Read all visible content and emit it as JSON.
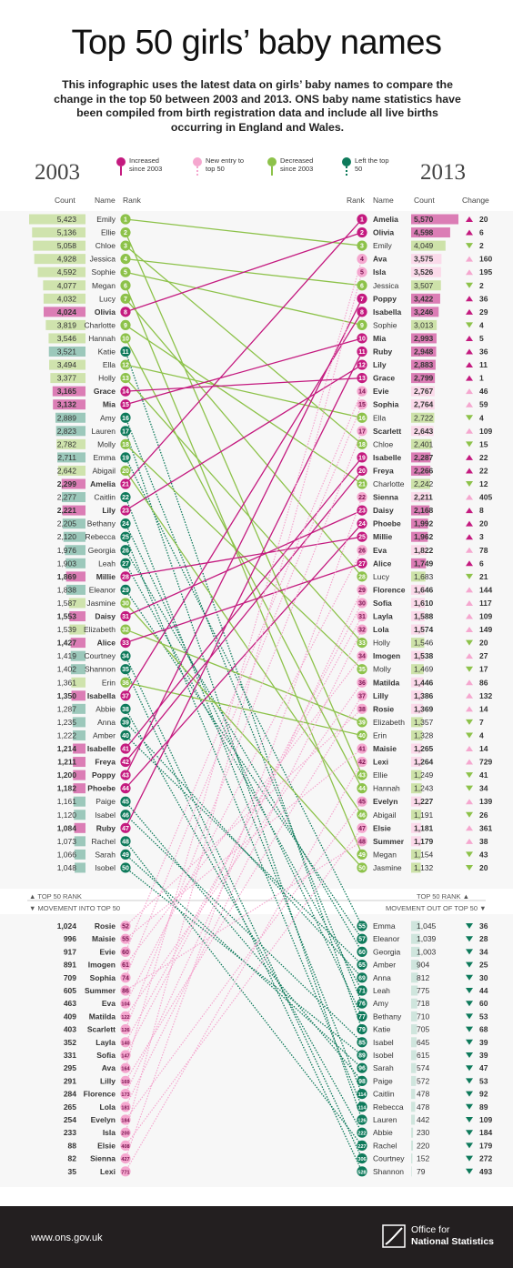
{
  "title": "Top 50 girls’ baby names",
  "intro": "This infographic uses the latest data on girls’ baby names to compare the change in the top 50 between 2003 and 2013. ONS baby name statistics have been compiled from birth registration data and include all live births occurring in England and Wales.",
  "year_left": "2003",
  "year_right": "2013",
  "legend": [
    {
      "label": "Increased since 2003",
      "color": "#c41a7f",
      "icon": "pin-dot-solid"
    },
    {
      "label": "New entry to top 50",
      "color": "#f5a7cf",
      "icon": "pin-dot-dotted"
    },
    {
      "label": "Decreased since 2003",
      "color": "#8dc24a",
      "icon": "pin-dot-solid"
    },
    {
      "label": "Left the top 50",
      "color": "#0e7a5b",
      "icon": "pin-dot-dotted"
    }
  ],
  "headers": {
    "count": "Count",
    "name": "Name",
    "rank": "Rank",
    "change": "Change"
  },
  "section_labels": {
    "top_left": "TOP 50 RANK",
    "top_right": "TOP 50 RANK",
    "movement_in": "MOVEMENT INTO TOP 50",
    "movement_out": "MOVEMENT OUT OF TOP 50"
  },
  "colors": {
    "increase": "#c41a7f",
    "new": "#f5a7cf",
    "decrease": "#8dc24a",
    "left": "#0e7a5b",
    "neutral": "#8cc0b0",
    "footer": "#231f20"
  },
  "chart_data": {
    "type": "slope",
    "left_2003": [
      {
        "rank": 1,
        "name": "Emily",
        "count": 5423,
        "rank2013": 3
      },
      {
        "rank": 2,
        "name": "Ellie",
        "count": 5136,
        "rank2013": 43
      },
      {
        "rank": 3,
        "name": "Chloe",
        "count": 5058,
        "rank2013": 18
      },
      {
        "rank": 4,
        "name": "Jessica",
        "count": 4928,
        "rank2013": 6
      },
      {
        "rank": 5,
        "name": "Sophie",
        "count": 4592,
        "rank2013": 9
      },
      {
        "rank": 6,
        "name": "Megan",
        "count": 4077,
        "rank2013": 49
      },
      {
        "rank": 7,
        "name": "Lucy",
        "count": 4032,
        "rank2013": 28
      },
      {
        "rank": 8,
        "name": "Olivia",
        "count": 4024,
        "rank2013": 2
      },
      {
        "rank": 9,
        "name": "Charlotte",
        "count": 3819,
        "rank2013": 21
      },
      {
        "rank": 10,
        "name": "Hannah",
        "count": 3546,
        "rank2013": 44
      },
      {
        "rank": 11,
        "name": "Katie",
        "count": 3521,
        "rank2013": 79
      },
      {
        "rank": 12,
        "name": "Ella",
        "count": 3494,
        "rank2013": 16
      },
      {
        "rank": 13,
        "name": "Holly",
        "count": 3377,
        "rank2013": 33
      },
      {
        "rank": 14,
        "name": "Grace",
        "count": 3165,
        "rank2013": 13
      },
      {
        "rank": 15,
        "name": "Mia",
        "count": 3132,
        "rank2013": 10
      },
      {
        "rank": 16,
        "name": "Amy",
        "count": 2889,
        "rank2013": 76
      },
      {
        "rank": 17,
        "name": "Lauren",
        "count": 2823,
        "rank2013": 126
      },
      {
        "rank": 18,
        "name": "Molly",
        "count": 2782,
        "rank2013": 35
      },
      {
        "rank": 19,
        "name": "Emma",
        "count": 2711,
        "rank2013": 55
      },
      {
        "rank": 20,
        "name": "Abigail",
        "count": 2642,
        "rank2013": 46
      },
      {
        "rank": 21,
        "name": "Amelia",
        "count": 2299,
        "rank2013": 1
      },
      {
        "rank": 22,
        "name": "Caitlin",
        "count": 2277,
        "rank2013": 114
      },
      {
        "rank": 23,
        "name": "Lily",
        "count": 2221,
        "rank2013": 12
      },
      {
        "rank": 24,
        "name": "Bethany",
        "count": 2205,
        "rank2013": 77
      },
      {
        "rank": 25,
        "name": "Rebecca",
        "count": 2120,
        "rank2013": 114
      },
      {
        "rank": 26,
        "name": "Georgia",
        "count": 1976,
        "rank2013": 60
      },
      {
        "rank": 27,
        "name": "Leah",
        "count": 1903,
        "rank2013": 71
      },
      {
        "rank": 28,
        "name": "Millie",
        "count": 1869,
        "rank2013": 25
      },
      {
        "rank": 29,
        "name": "Eleanor",
        "count": 1838,
        "rank2013": 57
      },
      {
        "rank": 30,
        "name": "Jasmine",
        "count": 1587,
        "rank2013": 50
      },
      {
        "rank": 31,
        "name": "Daisy",
        "count": 1553,
        "rank2013": 23
      },
      {
        "rank": 32,
        "name": "Elizabeth",
        "count": 1539,
        "rank2013": 39
      },
      {
        "rank": 33,
        "name": "Alice",
        "count": 1427,
        "rank2013": 27
      },
      {
        "rank": 34,
        "name": "Courtney",
        "count": 1419,
        "rank2013": 306
      },
      {
        "rank": 35,
        "name": "Shannon",
        "count": 1402,
        "rank2013": 528
      },
      {
        "rank": 36,
        "name": "Erin",
        "count": 1361,
        "rank2013": 40
      },
      {
        "rank": 37,
        "name": "Isabella",
        "count": 1350,
        "rank2013": 8
      },
      {
        "rank": 38,
        "name": "Abbie",
        "count": 1287,
        "rank2013": 222
      },
      {
        "rank": 39,
        "name": "Anna",
        "count": 1235,
        "rank2013": 69
      },
      {
        "rank": 40,
        "name": "Amber",
        "count": 1222,
        "rank2013": 65
      },
      {
        "rank": 41,
        "name": "Isabelle",
        "count": 1214,
        "rank2013": 19
      },
      {
        "rank": 42,
        "name": "Freya",
        "count": 1211,
        "rank2013": 20
      },
      {
        "rank": 43,
        "name": "Poppy",
        "count": 1200,
        "rank2013": 7
      },
      {
        "rank": 44,
        "name": "Phoebe",
        "count": 1182,
        "rank2013": 24
      },
      {
        "rank": 45,
        "name": "Paige",
        "count": 1161,
        "rank2013": 98
      },
      {
        "rank": 46,
        "name": "Isabel",
        "count": 1120,
        "rank2013": 85
      },
      {
        "rank": 47,
        "name": "Ruby",
        "count": 1084,
        "rank2013": 11
      },
      {
        "rank": 48,
        "name": "Rachel",
        "count": 1073,
        "rank2013": 227
      },
      {
        "rank": 49,
        "name": "Sarah",
        "count": 1066,
        "rank2013": 96
      },
      {
        "rank": 50,
        "name": "Isobel",
        "count": 1048,
        "rank2013": 89
      }
    ],
    "right_2013": [
      {
        "rank": 1,
        "name": "Amelia",
        "count": 5570,
        "change": "20",
        "dir": "up"
      },
      {
        "rank": 2,
        "name": "Olivia",
        "count": 4598,
        "change": "6",
        "dir": "up"
      },
      {
        "rank": 3,
        "name": "Emily",
        "count": 4049,
        "change": "2",
        "dir": "down"
      },
      {
        "rank": 4,
        "name": "Ava",
        "count": 3575,
        "change": "160",
        "dir": "up"
      },
      {
        "rank": 5,
        "name": "Isla",
        "count": 3526,
        "change": "195",
        "dir": "up"
      },
      {
        "rank": 6,
        "name": "Jessica",
        "count": 3507,
        "change": "2",
        "dir": "down"
      },
      {
        "rank": 7,
        "name": "Poppy",
        "count": 3422,
        "change": "36",
        "dir": "up"
      },
      {
        "rank": 8,
        "name": "Isabella",
        "count": 3246,
        "change": "29",
        "dir": "up"
      },
      {
        "rank": 9,
        "name": "Sophie",
        "count": 3013,
        "change": "4",
        "dir": "down"
      },
      {
        "rank": 10,
        "name": "Mia",
        "count": 2993,
        "change": "5",
        "dir": "up"
      },
      {
        "rank": 11,
        "name": "Ruby",
        "count": 2948,
        "change": "36",
        "dir": "up"
      },
      {
        "rank": 12,
        "name": "Lily",
        "count": 2883,
        "change": "11",
        "dir": "up"
      },
      {
        "rank": 13,
        "name": "Grace",
        "count": 2799,
        "change": "1",
        "dir": "up"
      },
      {
        "rank": 14,
        "name": "Evie",
        "count": 2767,
        "change": "46",
        "dir": "up"
      },
      {
        "rank": 15,
        "name": "Sophia",
        "count": 2764,
        "change": "59",
        "dir": "up"
      },
      {
        "rank": 16,
        "name": "Ella",
        "count": 2722,
        "change": "4",
        "dir": "down"
      },
      {
        "rank": 17,
        "name": "Scarlett",
        "count": 2643,
        "change": "109",
        "dir": "up"
      },
      {
        "rank": 18,
        "name": "Chloe",
        "count": 2401,
        "change": "15",
        "dir": "down"
      },
      {
        "rank": 19,
        "name": "Isabelle",
        "count": 2287,
        "change": "22",
        "dir": "up"
      },
      {
        "rank": 20,
        "name": "Freya",
        "count": 2266,
        "change": "22",
        "dir": "up"
      },
      {
        "rank": 21,
        "name": "Charlotte",
        "count": 2242,
        "change": "12",
        "dir": "down"
      },
      {
        "rank": 22,
        "name": "Sienna",
        "count": 2211,
        "change": "405",
        "dir": "up"
      },
      {
        "rank": 23,
        "name": "Daisy",
        "count": 2168,
        "change": "8",
        "dir": "up"
      },
      {
        "rank": 24,
        "name": "Phoebe",
        "count": 1992,
        "change": "20",
        "dir": "up"
      },
      {
        "rank": 25,
        "name": "Millie",
        "count": 1962,
        "change": "3",
        "dir": "up"
      },
      {
        "rank": 26,
        "name": "Eva",
        "count": 1822,
        "change": "78",
        "dir": "up"
      },
      {
        "rank": 27,
        "name": "Alice",
        "count": 1749,
        "change": "6",
        "dir": "up"
      },
      {
        "rank": 28,
        "name": "Lucy",
        "count": 1683,
        "change": "21",
        "dir": "down"
      },
      {
        "rank": 29,
        "name": "Florence",
        "count": 1646,
        "change": "144",
        "dir": "up"
      },
      {
        "rank": 30,
        "name": "Sofia",
        "count": 1610,
        "change": "117",
        "dir": "up"
      },
      {
        "rank": 31,
        "name": "Layla",
        "count": 1588,
        "change": "109",
        "dir": "up"
      },
      {
        "rank": 32,
        "name": "Lola",
        "count": 1574,
        "change": "149",
        "dir": "up"
      },
      {
        "rank": 33,
        "name": "Holly",
        "count": 1546,
        "change": "20",
        "dir": "down"
      },
      {
        "rank": 34,
        "name": "Imogen",
        "count": 1538,
        "change": "27",
        "dir": "up"
      },
      {
        "rank": 35,
        "name": "Molly",
        "count": 1469,
        "change": "17",
        "dir": "down"
      },
      {
        "rank": 36,
        "name": "Matilda",
        "count": 1446,
        "change": "86",
        "dir": "up"
      },
      {
        "rank": 37,
        "name": "Lilly",
        "count": 1386,
        "change": "132",
        "dir": "up"
      },
      {
        "rank": 38,
        "name": "Rosie",
        "count": 1369,
        "change": "14",
        "dir": "up"
      },
      {
        "rank": 39,
        "name": "Elizabeth",
        "count": 1357,
        "change": "7",
        "dir": "down"
      },
      {
        "rank": 40,
        "name": "Erin",
        "count": 1328,
        "change": "4",
        "dir": "down"
      },
      {
        "rank": 41,
        "name": "Maisie",
        "count": 1265,
        "change": "14",
        "dir": "up"
      },
      {
        "rank": 42,
        "name": "Lexi",
        "count": 1264,
        "change": "729",
        "dir": "up"
      },
      {
        "rank": 43,
        "name": "Ellie",
        "count": 1249,
        "change": "41",
        "dir": "down"
      },
      {
        "rank": 44,
        "name": "Hannah",
        "count": 1243,
        "change": "34",
        "dir": "down"
      },
      {
        "rank": 45,
        "name": "Evelyn",
        "count": 1227,
        "change": "139",
        "dir": "up"
      },
      {
        "rank": 46,
        "name": "Abigail",
        "count": 1191,
        "change": "26",
        "dir": "down"
      },
      {
        "rank": 47,
        "name": "Elsie",
        "count": 1181,
        "change": "361",
        "dir": "up"
      },
      {
        "rank": 48,
        "name": "Summer",
        "count": 1179,
        "change": "38",
        "dir": "up"
      },
      {
        "rank": 49,
        "name": "Megan",
        "count": 1154,
        "change": "43",
        "dir": "down"
      },
      {
        "rank": 50,
        "name": "Jasmine",
        "count": 1132,
        "change": "20",
        "dir": "down"
      }
    ],
    "movement_into": [
      {
        "name": "Rosie",
        "count": 1024,
        "rank": 52,
        "rank2013": 38
      },
      {
        "name": "Maisie",
        "count": 996,
        "rank": 55,
        "rank2013": 41
      },
      {
        "name": "Evie",
        "count": 917,
        "rank": 60,
        "rank2013": 14
      },
      {
        "name": "Imogen",
        "count": 891,
        "rank": 61,
        "rank2013": 34
      },
      {
        "name": "Sophia",
        "count": 709,
        "rank": 74,
        "rank2013": 15
      },
      {
        "name": "Summer",
        "count": 605,
        "rank": 86,
        "rank2013": 48
      },
      {
        "name": "Eva",
        "count": 463,
        "rank": 104,
        "rank2013": 26
      },
      {
        "name": "Matilda",
        "count": 409,
        "rank": 122,
        "rank2013": 36
      },
      {
        "name": "Scarlett",
        "count": 403,
        "rank": 126,
        "rank2013": 17
      },
      {
        "name": "Layla",
        "count": 352,
        "rank": 140,
        "rank2013": 31
      },
      {
        "name": "Sofia",
        "count": 331,
        "rank": 147,
        "rank2013": 30
      },
      {
        "name": "Ava",
        "count": 295,
        "rank": 164,
        "rank2013": 4
      },
      {
        "name": "Lilly",
        "count": 291,
        "rank": 169,
        "rank2013": 37
      },
      {
        "name": "Florence",
        "count": 284,
        "rank": 173,
        "rank2013": 29
      },
      {
        "name": "Lola",
        "count": 265,
        "rank": 181,
        "rank2013": 32
      },
      {
        "name": "Evelyn",
        "count": 254,
        "rank": 184,
        "rank2013": 45
      },
      {
        "name": "Isla",
        "count": 233,
        "rank": 200,
        "rank2013": 5
      },
      {
        "name": "Elsie",
        "count": 88,
        "rank": 408,
        "rank2013": 47
      },
      {
        "name": "Sienna",
        "count": 82,
        "rank": 427,
        "rank2013": 22
      },
      {
        "name": "Lexi",
        "count": 35,
        "rank": 771,
        "rank2013": 42
      }
    ],
    "movement_out": [
      {
        "rank": 55,
        "name": "Emma",
        "count": 1045,
        "change": "36"
      },
      {
        "rank": 57,
        "name": "Eleanor",
        "count": 1039,
        "change": "28"
      },
      {
        "rank": 60,
        "name": "Georgia",
        "count": 1003,
        "change": "34"
      },
      {
        "rank": 65,
        "name": "Amber",
        "count": 904,
        "change": "25"
      },
      {
        "rank": 69,
        "name": "Anna",
        "count": 812,
        "change": "30"
      },
      {
        "rank": 71,
        "name": "Leah",
        "count": 775,
        "change": "44"
      },
      {
        "rank": 76,
        "name": "Amy",
        "count": 718,
        "change": "60"
      },
      {
        "rank": 77,
        "name": "Bethany",
        "count": 710,
        "change": "53"
      },
      {
        "rank": 79,
        "name": "Katie",
        "count": 705,
        "change": "68"
      },
      {
        "rank": 85,
        "name": "Isabel",
        "count": 645,
        "change": "39"
      },
      {
        "rank": 89,
        "name": "Isobel",
        "count": 615,
        "change": "39"
      },
      {
        "rank": 96,
        "name": "Sarah",
        "count": 574,
        "change": "47"
      },
      {
        "rank": 98,
        "name": "Paige",
        "count": 572,
        "change": "53"
      },
      {
        "rank": 114,
        "name": "Caitlin",
        "count": 478,
        "change": "92"
      },
      {
        "rank": 114,
        "name": "Rebecca",
        "count": 478,
        "change": "89"
      },
      {
        "rank": 126,
        "name": "Lauren",
        "count": 442,
        "change": "109"
      },
      {
        "rank": 222,
        "name": "Abbie",
        "count": 230,
        "change": "184"
      },
      {
        "rank": 227,
        "name": "Rachel",
        "count": 220,
        "change": "179"
      },
      {
        "rank": 306,
        "name": "Courtney",
        "count": 152,
        "change": "272"
      },
      {
        "rank": 528,
        "name": "Shannon",
        "count": 79,
        "change": "493"
      }
    ]
  },
  "footer": {
    "url": "www.ons.gov.uk",
    "org_line1": "Office for",
    "org_line2": "National Statistics"
  }
}
